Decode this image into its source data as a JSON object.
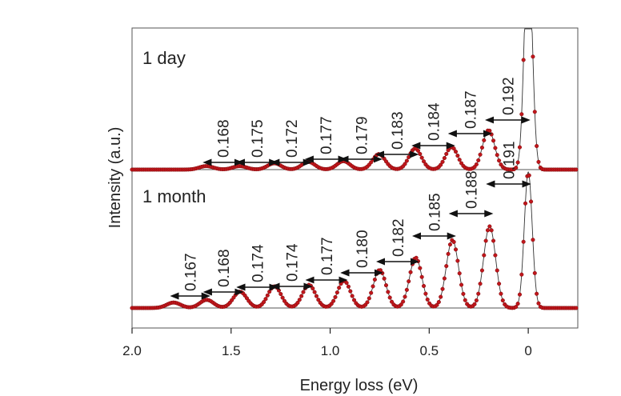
{
  "chart_data": {
    "type": "scatter",
    "xlabel": "Energy loss (eV)",
    "ylabel": "Intensity (a.u.)",
    "xlim": [
      2.0,
      -0.25
    ],
    "x_reversed": true,
    "x_ticks": [
      {
        "value": 2.0,
        "label": "2.0"
      },
      {
        "value": 1.5,
        "label": "1.5"
      },
      {
        "value": 1.0,
        "label": "1.0"
      },
      {
        "value": 0.5,
        "label": "0.5"
      },
      {
        "value": 0.0,
        "label": "0"
      }
    ],
    "grid": false,
    "colors": {
      "points": "#c0161b",
      "points_dark": "#7a0a0c",
      "fit_line": "#333333",
      "axis": "#222222",
      "arrows": "#111111"
    },
    "panels": [
      {
        "name": "1 day",
        "label": "1 day",
        "peak_energies": [
          1.625,
          1.457,
          1.282,
          1.11,
          0.933,
          0.754,
          0.571,
          0.387,
          0.2
        ],
        "peak_heights": [
          0.025,
          0.025,
          0.045,
          0.055,
          0.06,
          0.11,
          0.15,
          0.16,
          0.28
        ],
        "zero_loss_peak_height": 1.6,
        "spacings": [
          {
            "label": "0.168",
            "from": 1.625,
            "to": 1.457
          },
          {
            "label": "0.175",
            "from": 1.457,
            "to": 1.282
          },
          {
            "label": "0.172",
            "from": 1.282,
            "to": 1.11
          },
          {
            "label": "0.177",
            "from": 1.11,
            "to": 0.933
          },
          {
            "label": "0.179",
            "from": 0.933,
            "to": 0.754
          },
          {
            "label": "0.183",
            "from": 0.754,
            "to": 0.571
          },
          {
            "label": "0.184",
            "from": 0.571,
            "to": 0.387
          },
          {
            "label": "0.187",
            "from": 0.387,
            "to": 0.2
          },
          {
            "label": "0.192",
            "from": 0.2,
            "to": 0.008
          }
        ]
      },
      {
        "name": "1 month",
        "label": "1 month",
        "peak_energies": [
          1.79,
          1.623,
          1.455,
          1.281,
          1.107,
          0.93,
          0.75,
          0.568,
          0.383,
          0.195
        ],
        "peak_heights": [
          0.04,
          0.06,
          0.12,
          0.16,
          0.17,
          0.2,
          0.28,
          0.37,
          0.5,
          0.6
        ],
        "zero_loss_peak_height": 1.0,
        "spacings": [
          {
            "label": "0.167",
            "from": 1.79,
            "to": 1.623
          },
          {
            "label": "0.168",
            "from": 1.623,
            "to": 1.455
          },
          {
            "label": "0.174",
            "from": 1.455,
            "to": 1.281
          },
          {
            "label": "0.174",
            "from": 1.281,
            "to": 1.107
          },
          {
            "label": "0.177",
            "from": 1.107,
            "to": 0.93
          },
          {
            "label": "0.180",
            "from": 0.93,
            "to": 0.75
          },
          {
            "label": "0.182",
            "from": 0.75,
            "to": 0.568
          },
          {
            "label": "0.185",
            "from": 0.568,
            "to": 0.383
          },
          {
            "label": "0.188",
            "from": 0.383,
            "to": 0.195
          },
          {
            "label": "0.191",
            "from": 0.195,
            "to": 0.004
          }
        ]
      }
    ]
  }
}
